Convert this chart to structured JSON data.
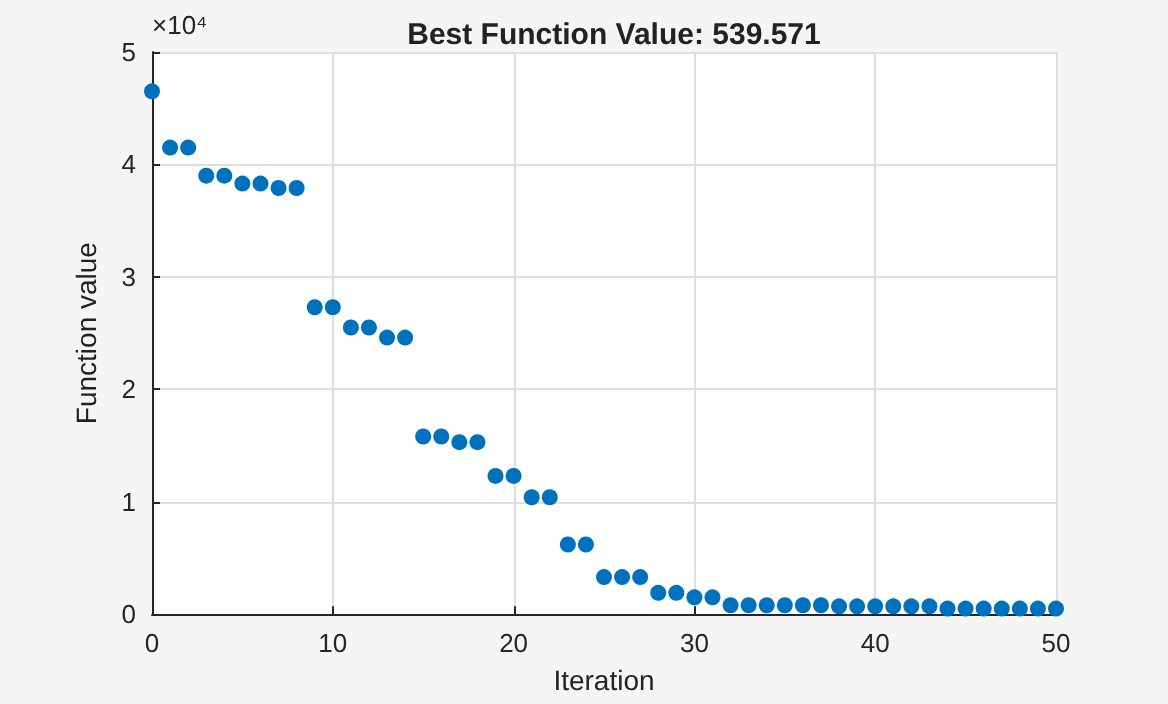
{
  "chart_data": {
    "type": "scatter",
    "title": "Best Function Value: 539.571",
    "xlabel": "Iteration",
    "ylabel": "Function value",
    "annotations": [
      "×10⁴"
    ],
    "x": [
      0,
      1,
      2,
      3,
      4,
      5,
      6,
      7,
      8,
      9,
      10,
      11,
      12,
      13,
      14,
      15,
      16,
      17,
      18,
      19,
      20,
      21,
      22,
      23,
      24,
      25,
      26,
      27,
      28,
      29,
      30,
      31,
      32,
      33,
      34,
      35,
      36,
      37,
      38,
      39,
      40,
      41,
      42,
      43,
      44,
      45,
      46,
      47,
      48,
      49,
      50
    ],
    "series": [
      {
        "color": "#0072bd",
        "values": [
          4.65,
          4.15,
          4.15,
          3.9,
          3.9,
          3.83,
          3.83,
          3.79,
          3.79,
          2.73,
          2.73,
          2.55,
          2.55,
          2.46,
          2.46,
          1.58,
          1.58,
          1.53,
          1.53,
          1.23,
          1.23,
          1.04,
          1.04,
          0.62,
          0.62,
          0.33,
          0.33,
          0.33,
          0.19,
          0.19,
          0.15,
          0.15,
          0.08,
          0.08,
          0.08,
          0.08,
          0.08,
          0.08,
          0.07,
          0.07,
          0.07,
          0.07,
          0.07,
          0.07,
          0.05,
          0.05,
          0.05,
          0.05,
          0.05,
          0.05,
          0.05
        ]
      }
    ],
    "xlim": [
      0,
      50
    ],
    "xticks": [
      0,
      10,
      20,
      30,
      40,
      50
    ],
    "ylim": [
      0,
      5
    ],
    "yticks": [
      0,
      1,
      2,
      3,
      4,
      5
    ],
    "grid": true,
    "marker": "circle"
  }
}
